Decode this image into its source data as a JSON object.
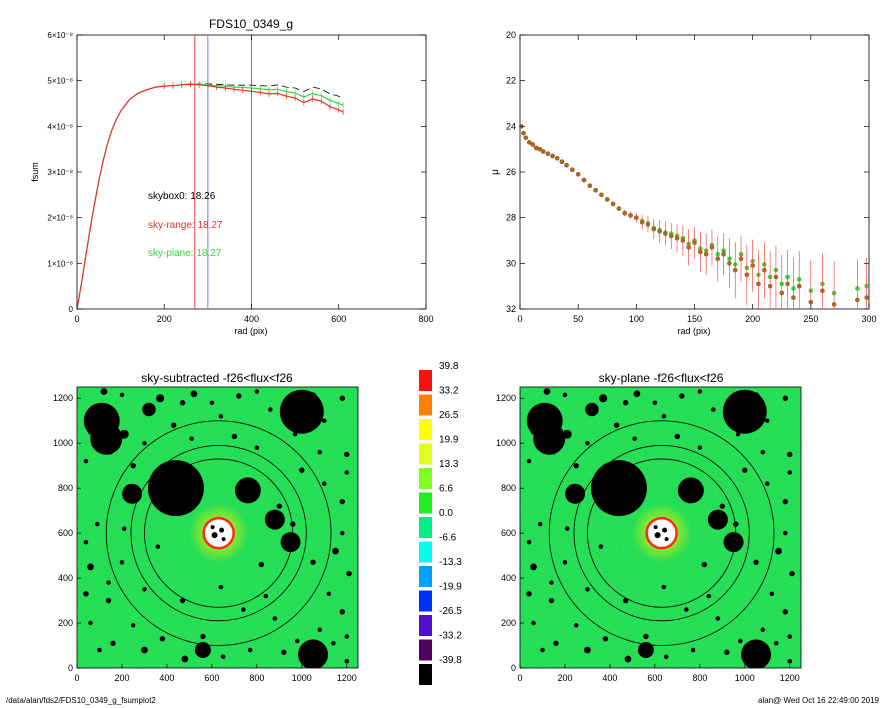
{
  "colors": {
    "background": "#ffffff",
    "sky_range": "#e8322a",
    "sky_plane": "#3fd43f",
    "skybox": "#000000",
    "map_base": "#22dd55",
    "annulus": "#000000"
  },
  "footer": {
    "left": "/data/alan/fds2/FDS10_0349_g_fsumplot2",
    "right": "alan@  Wed Oct 16 22:49:00 2019"
  },
  "chart_data": [
    {
      "type": "line",
      "title": "FDS10_0349_g",
      "xlabel": "rad (pix)",
      "ylabel": "fsum",
      "xlim": [
        0,
        800
      ],
      "ylim": [
        0,
        6e-08
      ],
      "x_ticks": [
        "0",
        "200",
        "400",
        "600",
        "800"
      ],
      "y_ticks": [
        "0",
        "1×10⁻⁸",
        "2×10⁻⁸",
        "3×10⁻⁸",
        "4×10⁻⁸",
        "5×10⁻⁸",
        "6×10⁻⁸"
      ],
      "x": [
        0,
        10,
        20,
        30,
        40,
        50,
        60,
        70,
        80,
        90,
        100,
        120,
        140,
        160,
        180,
        200,
        220,
        240,
        260,
        280,
        300,
        320,
        340,
        360,
        380,
        400,
        420,
        440,
        460,
        480,
        500,
        520,
        540,
        560,
        580,
        600,
        610
      ],
      "series": [
        {
          "name": "sky-range",
          "values": [
            0.0,
            5.5e-09,
            1.15e-08,
            1.75e-08,
            2.3e-08,
            2.8e-08,
            3.25e-08,
            3.62e-08,
            3.92e-08,
            4.15e-08,
            4.33e-08,
            4.58e-08,
            4.73e-08,
            4.8e-08,
            4.86e-08,
            4.88e-08,
            4.89e-08,
            4.91e-08,
            4.92e-08,
            4.91e-08,
            4.89e-08,
            4.86e-08,
            4.84e-08,
            4.81e-08,
            4.79e-08,
            4.77e-08,
            4.74e-08,
            4.71e-08,
            4.72e-08,
            4.66e-08,
            4.62e-08,
            4.52e-08,
            4.6e-08,
            4.55e-08,
            4.43e-08,
            4.36e-08,
            4.31e-08
          ]
        },
        {
          "name": "sky-plane",
          "values": [
            0.0,
            5.5e-09,
            1.15e-08,
            1.75e-08,
            2.3e-08,
            2.8e-08,
            3.25e-08,
            3.62e-08,
            3.92e-08,
            4.15e-08,
            4.33e-08,
            4.58e-08,
            4.73e-08,
            4.8e-08,
            4.86e-08,
            4.88e-08,
            4.89e-08,
            4.91e-08,
            4.93e-08,
            4.92e-08,
            4.91e-08,
            4.89e-08,
            4.88e-08,
            4.86e-08,
            4.85e-08,
            4.84e-08,
            4.82e-08,
            4.8e-08,
            4.81e-08,
            4.76e-08,
            4.73e-08,
            4.64e-08,
            4.72e-08,
            4.67e-08,
            4.57e-08,
            4.5e-08,
            4.46e-08
          ]
        },
        {
          "name": "skybox0",
          "values": [
            0.0,
            5.5e-09,
            1.15e-08,
            1.75e-08,
            2.3e-08,
            2.8e-08,
            3.25e-08,
            3.62e-08,
            3.92e-08,
            4.15e-08,
            4.33e-08,
            4.58e-08,
            4.73e-08,
            4.8e-08,
            4.86e-08,
            4.88e-08,
            4.89e-08,
            4.91e-08,
            4.93e-08,
            4.93e-08,
            4.93e-08,
            4.92e-08,
            4.91e-08,
            4.9e-08,
            4.9e-08,
            4.9e-08,
            4.89e-08,
            4.88e-08,
            4.91e-08,
            4.86e-08,
            4.84e-08,
            4.76e-08,
            4.86e-08,
            4.82e-08,
            4.71e-08,
            4.66e-08,
            4.62e-08
          ]
        }
      ],
      "vlines": [
        270,
        300,
        400
      ],
      "annotations": [
        {
          "key": "skybox",
          "text": "skybox0: 18.26"
        },
        {
          "key": "range",
          "text": "sky-range: 18.27"
        },
        {
          "key": "plane",
          "text": "sky-plane: 18.27"
        }
      ]
    },
    {
      "type": "scatter",
      "title": "",
      "xlabel": "rad (pix)",
      "ylabel": "μ",
      "xlim": [
        0,
        300
      ],
      "ylim": [
        32,
        20
      ],
      "x_ticks": [
        "0",
        "50",
        "100",
        "150",
        "200",
        "250",
        "300"
      ],
      "y_ticks": [
        "20",
        "22",
        "24",
        "26",
        "28",
        "30",
        "32"
      ],
      "x": [
        1,
        3,
        5,
        8,
        11,
        14,
        17,
        20,
        24,
        28,
        32,
        36,
        40,
        45,
        50,
        55,
        60,
        65,
        70,
        75,
        80,
        85,
        90,
        95,
        100,
        105,
        110,
        115,
        120,
        125,
        130,
        135,
        140,
        145,
        150,
        155,
        160,
        165,
        170,
        175,
        180,
        185,
        190,
        195,
        200,
        205,
        210,
        215,
        220,
        225,
        230,
        235,
        240,
        250,
        260,
        270,
        290,
        298
      ],
      "series": [
        {
          "name": "sky-range",
          "values": [
            24.0,
            24.3,
            24.5,
            24.7,
            24.8,
            24.95,
            25.0,
            25.1,
            25.2,
            25.3,
            25.4,
            25.55,
            25.7,
            25.9,
            26.1,
            26.35,
            26.6,
            26.8,
            27.0,
            27.2,
            27.4,
            27.6,
            27.8,
            27.9,
            28.0,
            28.2,
            28.3,
            28.5,
            28.6,
            28.7,
            28.8,
            28.9,
            29.0,
            29.3,
            29.1,
            29.5,
            29.6,
            29.3,
            29.8,
            29.6,
            30.0,
            30.3,
            29.8,
            30.5,
            30.1,
            30.9,
            30.3,
            31.0,
            30.6,
            31.3,
            30.9,
            31.5,
            31.0,
            31.7,
            31.2,
            31.8,
            31.6,
            31.5
          ]
        },
        {
          "name": "sky-plane",
          "values": [
            24.0,
            24.3,
            24.5,
            24.7,
            24.8,
            24.95,
            25.0,
            25.1,
            25.2,
            25.3,
            25.4,
            25.55,
            25.7,
            25.9,
            26.1,
            26.35,
            26.6,
            26.8,
            27.0,
            27.2,
            27.4,
            27.6,
            27.8,
            27.9,
            28.0,
            28.15,
            28.25,
            28.45,
            28.55,
            28.65,
            28.7,
            28.8,
            28.9,
            29.15,
            29.0,
            29.35,
            29.45,
            29.2,
            29.6,
            29.45,
            29.8,
            30.05,
            29.6,
            30.2,
            29.9,
            30.5,
            30.05,
            30.6,
            30.3,
            30.9,
            30.6,
            31.1,
            30.7,
            31.2,
            30.9,
            31.3,
            31.1,
            31.0
          ]
        }
      ]
    },
    {
      "type": "heatmap",
      "title": "sky-subtracted -f26<flux<f26",
      "xlim": [
        0,
        1250
      ],
      "ylim": [
        0,
        1250
      ],
      "x_ticks": [
        "0",
        "200",
        "400",
        "600",
        "800",
        "1000",
        "1200"
      ],
      "y_ticks": [
        "0",
        "200",
        "400",
        "600",
        "800",
        "1000",
        "1200"
      ],
      "center": [
        630,
        600
      ],
      "annulus_radii": [
        330,
        390,
        500
      ]
    },
    {
      "type": "heatmap",
      "title": "sky-plane -f26<flux<f26",
      "xlim": [
        0,
        1250
      ],
      "ylim": [
        0,
        1250
      ],
      "x_ticks": [
        "0",
        "200",
        "400",
        "600",
        "800",
        "1000",
        "1200"
      ],
      "y_ticks": [
        "0",
        "200",
        "400",
        "600",
        "800",
        "1000",
        "1200"
      ],
      "center": [
        630,
        600
      ],
      "annulus_radii": [
        330,
        390,
        500
      ]
    },
    {
      "type": "table",
      "name": "colorbar",
      "labels": [
        "39.8",
        "33.2",
        "26.5",
        "19.9",
        "13.3",
        "6.6",
        "0.0",
        "-6.6",
        "-13.3",
        "-19.9",
        "-26.5",
        "-33.2",
        "-39.8"
      ],
      "colors": [
        "#ff1010",
        "#ff8000",
        "#ffff00",
        "#e0ff20",
        "#80ff20",
        "#20ee20",
        "#00ee88",
        "#00ffee",
        "#00a0ff",
        "#0030ff",
        "#5010d0",
        "#50005f",
        "#000000"
      ]
    }
  ]
}
